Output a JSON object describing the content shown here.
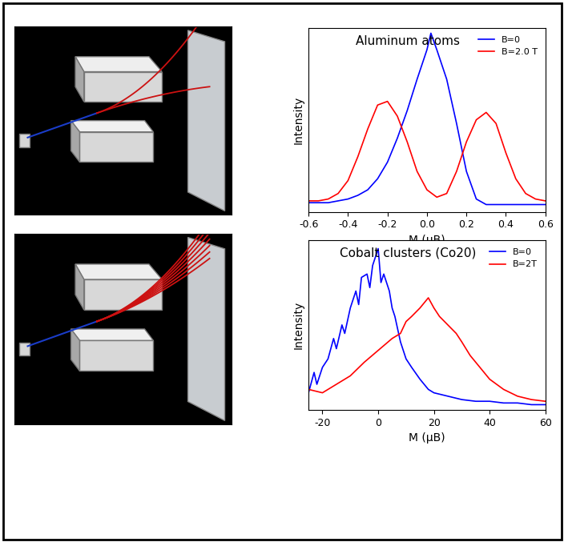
{
  "chart_data": [
    {
      "type": "line",
      "title": "Aluminum atoms",
      "x_label": "M (μB)",
      "y_label": "Intensity",
      "xlim": [
        -0.6,
        0.6
      ],
      "xticks": [
        -0.6,
        -0.4,
        -0.2,
        0.0,
        0.2,
        0.4,
        0.6
      ],
      "ylim": [
        0,
        1.0
      ],
      "tick_labels": "x",
      "legend": "upper right",
      "series": [
        {
          "name": "B=0",
          "color": "#0000ff",
          "x": [
            -0.6,
            -0.55,
            -0.5,
            -0.45,
            -0.4,
            -0.35,
            -0.3,
            -0.25,
            -0.2,
            -0.15,
            -0.1,
            -0.05,
            0.0,
            0.02,
            0.05,
            0.1,
            0.15,
            0.2,
            0.25,
            0.3,
            0.35,
            0.4,
            0.45,
            0.5,
            0.55,
            0.6
          ],
          "values": [
            0.05,
            0.05,
            0.05,
            0.06,
            0.07,
            0.09,
            0.12,
            0.18,
            0.27,
            0.4,
            0.55,
            0.72,
            0.88,
            0.97,
            0.88,
            0.72,
            0.48,
            0.22,
            0.07,
            0.04,
            0.04,
            0.04,
            0.04,
            0.04,
            0.04,
            0.04
          ]
        },
        {
          "name": "B=2.0 T",
          "color": "#ff0000",
          "x": [
            -0.6,
            -0.55,
            -0.5,
            -0.45,
            -0.4,
            -0.35,
            -0.3,
            -0.25,
            -0.2,
            -0.15,
            -0.1,
            -0.05,
            0.0,
            0.05,
            0.1,
            0.15,
            0.2,
            0.25,
            0.3,
            0.35,
            0.4,
            0.45,
            0.5,
            0.55,
            0.6
          ],
          "values": [
            0.06,
            0.06,
            0.07,
            0.1,
            0.17,
            0.3,
            0.45,
            0.58,
            0.6,
            0.52,
            0.38,
            0.22,
            0.12,
            0.08,
            0.1,
            0.22,
            0.38,
            0.5,
            0.54,
            0.48,
            0.32,
            0.18,
            0.1,
            0.07,
            0.06
          ]
        }
      ]
    },
    {
      "type": "line",
      "title": "Cobalt clusters (Co20)",
      "x_label": "M (μB)",
      "y_label": "Intensity",
      "xlim": [
        -25,
        60
      ],
      "xticks": [
        -20,
        0,
        20,
        40,
        60
      ],
      "ylim": [
        0,
        1.0
      ],
      "tick_labels": "x",
      "legend": "upper right",
      "series": [
        {
          "name": "B=0",
          "color": "#0000ff",
          "x": [
            -25,
            -23,
            -22,
            -20,
            -18,
            -16,
            -15,
            -13,
            -12,
            -10,
            -8,
            -7,
            -6,
            -4,
            -3,
            -2,
            0,
            1,
            2,
            4,
            5,
            6,
            8,
            10,
            12,
            15,
            18,
            20,
            25,
            30,
            35,
            40,
            45,
            50,
            55,
            60
          ],
          "values": [
            0.1,
            0.22,
            0.15,
            0.25,
            0.3,
            0.42,
            0.36,
            0.5,
            0.45,
            0.6,
            0.7,
            0.62,
            0.78,
            0.8,
            0.72,
            0.85,
            0.95,
            0.75,
            0.8,
            0.7,
            0.6,
            0.55,
            0.4,
            0.3,
            0.25,
            0.18,
            0.12,
            0.1,
            0.08,
            0.06,
            0.05,
            0.05,
            0.04,
            0.04,
            0.03,
            0.03
          ]
        },
        {
          "name": "B=2T",
          "color": "#ff0000",
          "x": [
            -25,
            -20,
            -15,
            -10,
            -5,
            0,
            5,
            8,
            10,
            12,
            15,
            18,
            20,
            22,
            25,
            28,
            30,
            33,
            35,
            38,
            40,
            45,
            50,
            55,
            60
          ],
          "values": [
            0.12,
            0.1,
            0.15,
            0.2,
            0.28,
            0.35,
            0.42,
            0.45,
            0.52,
            0.55,
            0.6,
            0.66,
            0.6,
            0.55,
            0.5,
            0.45,
            0.4,
            0.32,
            0.28,
            0.22,
            0.18,
            0.12,
            0.08,
            0.06,
            0.05
          ]
        }
      ]
    }
  ]
}
